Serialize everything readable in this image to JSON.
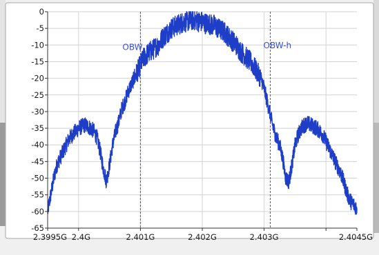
{
  "chart_data": {
    "type": "line",
    "title": "",
    "xlabel": "",
    "ylabel": "",
    "xlim": [
      2.3995,
      2.4045
    ],
    "ylim": [
      -65,
      0
    ],
    "x_ticks": [
      {
        "value": 2.3995,
        "label": "2.3995G"
      },
      {
        "value": 2.4,
        "label": "2.4G"
      },
      {
        "value": 2.401,
        "label": "2.401G"
      },
      {
        "value": 2.402,
        "label": "2.402G"
      },
      {
        "value": 2.403,
        "label": "2.403G"
      },
      {
        "value": 2.4045,
        "label": "2.4045G"
      }
    ],
    "x_grid": [
      2.4,
      2.401,
      2.402,
      2.403,
      2.404
    ],
    "y_ticks": [
      {
        "value": 0,
        "label": "0"
      },
      {
        "value": -5,
        "label": "-5"
      },
      {
        "value": -10,
        "label": "-10"
      },
      {
        "value": -15,
        "label": "-15"
      },
      {
        "value": -20,
        "label": "-20"
      },
      {
        "value": -25,
        "label": "-25"
      },
      {
        "value": -30,
        "label": "-30"
      },
      {
        "value": -35,
        "label": "-35"
      },
      {
        "value": -40,
        "label": "-40"
      },
      {
        "value": -45,
        "label": "-45"
      },
      {
        "value": -50,
        "label": "-50"
      },
      {
        "value": -55,
        "label": "-55"
      },
      {
        "value": -60,
        "label": "-60"
      },
      {
        "value": -65,
        "label": "-65"
      }
    ],
    "grid": true,
    "series": [
      {
        "color": "#1f3ec8",
        "x": [
          2.3995,
          2.39955,
          2.3996,
          2.39965,
          2.3997,
          2.39975,
          2.3998,
          2.39985,
          2.3999,
          2.39995,
          2.4,
          2.40005,
          2.4001,
          2.40015,
          2.4002,
          2.40025,
          2.4003,
          2.40035,
          2.4004,
          2.40045,
          2.4005,
          2.40055,
          2.4006,
          2.40065,
          2.4007,
          2.40075,
          2.4008,
          2.40085,
          2.4009,
          2.40095,
          2.401,
          2.40105,
          2.4011,
          2.40115,
          2.4012,
          2.40125,
          2.4013,
          2.40135,
          2.4014,
          2.40145,
          2.4015,
          2.40155,
          2.4016,
          2.40165,
          2.4017,
          2.40175,
          2.4018,
          2.40185,
          2.4019,
          2.40195,
          2.402,
          2.40205,
          2.4021,
          2.40215,
          2.4022,
          2.40225,
          2.4023,
          2.40235,
          2.4024,
          2.40245,
          2.4025,
          2.40255,
          2.4026,
          2.40265,
          2.4027,
          2.40275,
          2.4028,
          2.40285,
          2.4029,
          2.40295,
          2.403,
          2.40305,
          2.4031,
          2.40315,
          2.4032,
          2.40325,
          2.4033,
          2.40335,
          2.4034,
          2.40345,
          2.4035,
          2.40355,
          2.4036,
          2.40365,
          2.4037,
          2.40375,
          2.4038,
          2.40385,
          2.4039,
          2.40395,
          2.404,
          2.40405,
          2.4041,
          2.40415,
          2.4042,
          2.40425,
          2.4043,
          2.40435,
          2.4044,
          2.40445,
          2.4045
        ],
        "y": [
          -60,
          -55,
          -50,
          -46,
          -44,
          -42,
          -40,
          -38,
          -37,
          -36,
          -35,
          -34.5,
          -34,
          -34.5,
          -35,
          -36,
          -38,
          -42,
          -47,
          -51,
          -46,
          -40,
          -36,
          -33,
          -29,
          -27,
          -24,
          -22,
          -20,
          -18,
          -16,
          -14,
          -13,
          -12,
          -11.5,
          -10.5,
          -10,
          -8,
          -7,
          -6,
          -5,
          -4.5,
          -4,
          -3.5,
          -3,
          -3,
          -2.5,
          -2.5,
          -2.5,
          -3,
          -3,
          -3.5,
          -3.5,
          -4,
          -4,
          -5,
          -5.5,
          -6,
          -7,
          -8,
          -9,
          -10,
          -11.5,
          -12.5,
          -13.5,
          -14.5,
          -15.5,
          -17,
          -18.5,
          -20,
          -23,
          -27,
          -31,
          -35,
          -38,
          -40,
          -44,
          -50,
          -51,
          -46,
          -40,
          -37,
          -35,
          -34,
          -33.5,
          -34,
          -34.5,
          -35,
          -36,
          -37,
          -39,
          -41,
          -43,
          -45,
          -47,
          -49,
          -52,
          -55,
          -57,
          -58,
          -59
        ]
      }
    ],
    "markers": [
      {
        "x": 2.401,
        "label": "OBW",
        "label_y": -11.5
      },
      {
        "x": 2.4031,
        "label": "OBW-h",
        "label_y": -11
      }
    ]
  }
}
